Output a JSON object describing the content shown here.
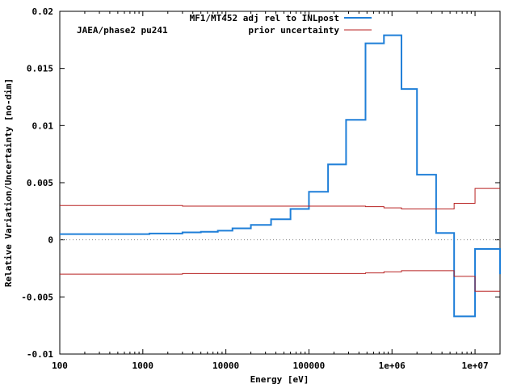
{
  "chart_data": {
    "type": "line",
    "annotation": "JAEA/phase2 pu241",
    "xlabel": "Energy [eV]",
    "ylabel": "Relative Variation/Uncertainty [no-dim]",
    "xscale": "log",
    "xlim": [
      100,
      20000000
    ],
    "ylim": [
      -0.01,
      0.02
    ],
    "x_ticks": [
      {
        "value": 100,
        "label": "100"
      },
      {
        "value": 1000,
        "label": "1000"
      },
      {
        "value": 10000,
        "label": "10000"
      },
      {
        "value": 100000,
        "label": "100000"
      },
      {
        "value": 1000000,
        "label": "1e+06"
      },
      {
        "value": 10000000,
        "label": "1e+07"
      }
    ],
    "y_ticks": [
      {
        "value": -0.01,
        "label": "-0.01"
      },
      {
        "value": -0.005,
        "label": "-0.005"
      },
      {
        "value": 0,
        "label": "0"
      },
      {
        "value": 0.005,
        "label": "0.005"
      },
      {
        "value": 0.01,
        "label": "0.01"
      },
      {
        "value": 0.015,
        "label": "0.015"
      },
      {
        "value": 0.02,
        "label": "0.02"
      }
    ],
    "legend_position": "top-right",
    "zero_line": "dotted",
    "series": [
      {
        "name": "MF1/MT452 adj rel to INLpost",
        "color": "#1f7fd8",
        "style": "step",
        "edges": [
          100,
          1200,
          3000,
          5000,
          8000,
          12000,
          20000,
          35000,
          60000,
          100000,
          170000,
          280000,
          480000,
          800000,
          1300000,
          2000000,
          3400000,
          5600000,
          10000000,
          20000000
        ],
        "values": [
          0.0005,
          0.00055,
          0.00065,
          0.0007,
          0.0008,
          0.001,
          0.0013,
          0.0018,
          0.0027,
          0.0042,
          0.0066,
          0.0105,
          0.0172,
          0.0179,
          0.0132,
          0.0057,
          0.0006,
          -0.0067,
          -0.0008,
          -0.003
        ]
      },
      {
        "name": "prior uncertainty",
        "color": "#b82222",
        "style": "step-symmetric",
        "edges": [
          100,
          3000,
          480000,
          800000,
          1300000,
          5600000,
          10000000,
          20000000
        ],
        "values": [
          0.003,
          0.00295,
          0.0029,
          0.0028,
          0.0027,
          0.0032,
          0.0045,
          0.0045
        ]
      }
    ]
  }
}
